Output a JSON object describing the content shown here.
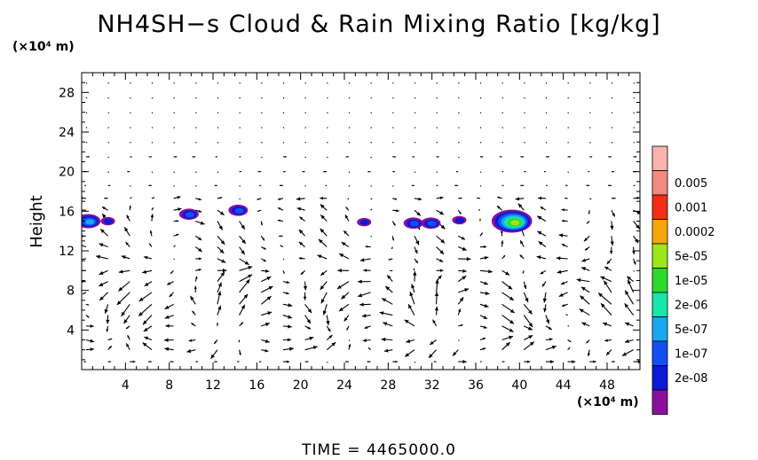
{
  "title": "NH4SH−s Cloud & Rain Mixing Ratio [kg/kg]",
  "time_label": "TIME  =  4465000.0",
  "chart_data": {
    "type": "contour",
    "title": "NH4SH−s Cloud & Rain Mixing Ratio [kg/kg]",
    "xlabel": "",
    "ylabel": "Height",
    "x_unit": "(×10⁴ m)",
    "y_unit": "(×10⁴ m)",
    "xlim": [
      0,
      51
    ],
    "ylim": [
      0,
      30
    ],
    "x_ticks": [
      4,
      8,
      12,
      16,
      20,
      24,
      28,
      32,
      36,
      40,
      44,
      48
    ],
    "y_ticks": [
      4,
      8,
      12,
      16,
      20,
      24,
      28
    ],
    "grid": false,
    "legend_position": "right",
    "colorbar": [
      {
        "label": "",
        "color": "#8b0f9c"
      },
      {
        "label": "2e-08",
        "color": "#0a1ad6"
      },
      {
        "label": "1e-07",
        "color": "#1450f0"
      },
      {
        "label": "5e-07",
        "color": "#19a7f2"
      },
      {
        "label": "2e-06",
        "color": "#19e6a8"
      },
      {
        "label": "1e-05",
        "color": "#2ed92e"
      },
      {
        "label": "5e-05",
        "color": "#9ee61a"
      },
      {
        "label": "0.0002",
        "color": "#f5a60a"
      },
      {
        "label": "0.001",
        "color": "#f22e14"
      },
      {
        "label": "0.005",
        "color": "#f28a80"
      },
      {
        "label": "",
        "color": "#f7b3ae"
      }
    ],
    "cloud_patches": [
      {
        "x": 0.6,
        "y": 15.0,
        "max_level": "5e-07"
      },
      {
        "x": 2.4,
        "y": 15.0,
        "max_level": "2e-08"
      },
      {
        "x": 9.8,
        "y": 15.7,
        "max_level": "1e-07"
      },
      {
        "x": 14.3,
        "y": 16.1,
        "max_level": "1e-07"
      },
      {
        "x": 25.8,
        "y": 14.9,
        "max_level": "2e-08"
      },
      {
        "x": 30.3,
        "y": 14.8,
        "max_level": "1e-07"
      },
      {
        "x": 31.9,
        "y": 14.8,
        "max_level": "1e-07"
      },
      {
        "x": 34.5,
        "y": 15.1,
        "max_level": "2e-08"
      },
      {
        "x": 39.3,
        "y": 15.0,
        "max_level": "5e-05"
      }
    ],
    "wind_vectors": "velocity arrow field on a regular grid (x spacing 2, y spacing 1–2 in ×10⁴ m)"
  }
}
